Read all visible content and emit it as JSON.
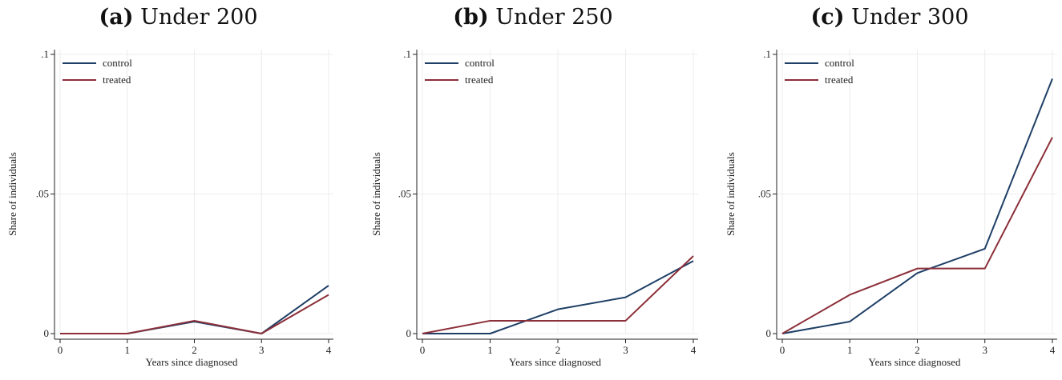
{
  "colors": {
    "control": "#1f3f66",
    "treated": "#8c2f39",
    "grid": "#ececec",
    "axis": "#222222"
  },
  "chart_data": [
    {
      "type": "line",
      "panel_letter": "(a)",
      "title": "Under 200",
      "xlabel": "Years since diagnosed",
      "ylabel": "Share of individuals",
      "x": [
        0,
        1,
        2,
        3,
        4
      ],
      "xticks": [
        "0",
        "1",
        "2",
        "3",
        "4"
      ],
      "yticks": [
        {
          "v": 0,
          "label": "0"
        },
        {
          "v": 0.05,
          "label": ".05"
        },
        {
          "v": 0.1,
          "label": ".1"
        }
      ],
      "ylim": [
        0,
        0.1
      ],
      "grid": true,
      "legend": "top-left",
      "series": [
        {
          "name": "control",
          "values": [
            0,
            0,
            0.0043,
            0,
            0.0172
          ]
        },
        {
          "name": "treated",
          "values": [
            0,
            0,
            0.0046,
            0,
            0.0139
          ]
        }
      ]
    },
    {
      "type": "line",
      "panel_letter": "(b)",
      "title": "Under 250",
      "xlabel": "Years since diagnosed",
      "ylabel": "Share of individuals",
      "x": [
        0,
        1,
        2,
        3,
        4
      ],
      "xticks": [
        "0",
        "1",
        "2",
        "3",
        "4"
      ],
      "yticks": [
        {
          "v": 0,
          "label": "0"
        },
        {
          "v": 0.05,
          "label": ".05"
        },
        {
          "v": 0.1,
          "label": ".1"
        }
      ],
      "ylim": [
        0,
        0.1
      ],
      "grid": true,
      "legend": "top-left",
      "series": [
        {
          "name": "control",
          "values": [
            0,
            0,
            0.0087,
            0.013,
            0.026
          ]
        },
        {
          "name": "treated",
          "values": [
            0,
            0.0046,
            0.0046,
            0.0046,
            0.0278
          ]
        }
      ]
    },
    {
      "type": "line",
      "panel_letter": "(c)",
      "title": "Under 300",
      "xlabel": "Years since diagnosed",
      "ylabel": "Share of individuals",
      "x": [
        0,
        1,
        2,
        3,
        4
      ],
      "xticks": [
        "0",
        "1",
        "2",
        "3",
        "4"
      ],
      "yticks": [
        {
          "v": 0,
          "label": "0"
        },
        {
          "v": 0.05,
          "label": ".05"
        },
        {
          "v": 0.1,
          "label": ".1"
        }
      ],
      "ylim": [
        0,
        0.1
      ],
      "grid": true,
      "legend": "top-left",
      "series": [
        {
          "name": "control",
          "values": [
            0,
            0.0043,
            0.0217,
            0.0304,
            0.0913
          ]
        },
        {
          "name": "treated",
          "values": [
            0,
            0.0139,
            0.0233,
            0.0233,
            0.0703
          ]
        }
      ]
    }
  ]
}
